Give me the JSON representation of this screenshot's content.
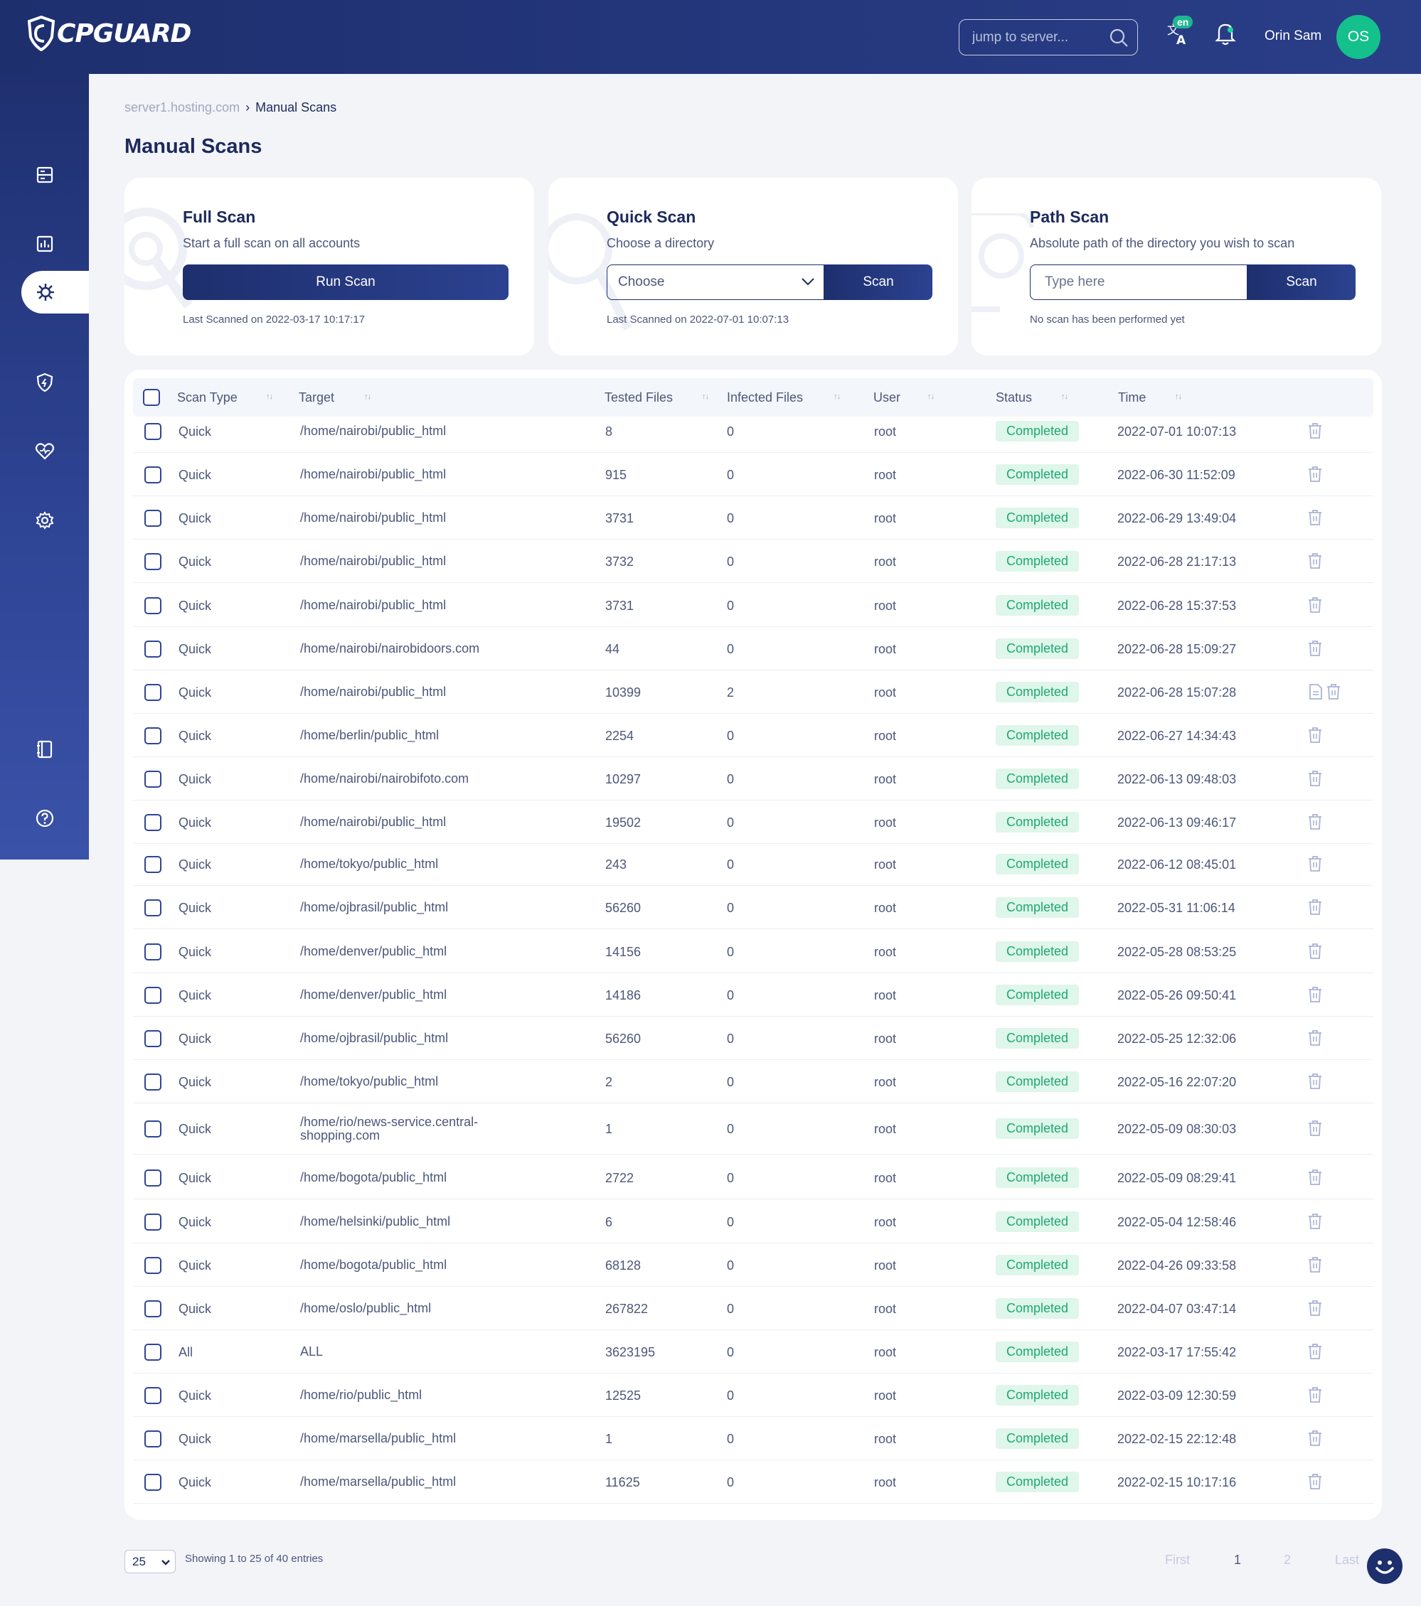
{
  "app": {
    "logo_text": "CPGUARD"
  },
  "header": {
    "search_placeholder": "jump to server...",
    "lang_badge": "en",
    "user_name": "Orin Sam",
    "avatar_initials": "OS"
  },
  "breadcrumb": {
    "server": "server1.hosting.com",
    "sep": "›",
    "current": "Manual Scans"
  },
  "page_title": "Manual Scans",
  "full_scan": {
    "title": "Full Scan",
    "subtitle": "Start a full scan on all accounts",
    "button": "Run Scan",
    "last": "Last Scanned on 2022-03-17 10:17:17"
  },
  "quick_scan": {
    "title": "Quick Scan",
    "subtitle": "Choose a directory",
    "select_value": "Choose",
    "button": "Scan",
    "last": "Last Scanned on 2022-07-01 10:07:13"
  },
  "path_scan": {
    "title": "Path Scan",
    "subtitle": "Absolute path of the directory you wish to scan",
    "placeholder": "Type here",
    "button": "Scan",
    "last": "No scan has been performed yet"
  },
  "table": {
    "columns": [
      "Scan Type",
      "Target",
      "Tested Files",
      "Infected Files",
      "User",
      "Status",
      "Time"
    ],
    "rows": [
      {
        "type": "Quick",
        "target": "/home/nairobi/public_html",
        "tested": "8",
        "infected": "0",
        "user": "root",
        "status": "Completed",
        "time": "2022-07-01 10:07:13",
        "report": false
      },
      {
        "type": "Quick",
        "target": "/home/nairobi/public_html",
        "tested": "915",
        "infected": "0",
        "user": "root",
        "status": "Completed",
        "time": "2022-06-30 11:52:09",
        "report": false
      },
      {
        "type": "Quick",
        "target": "/home/nairobi/public_html",
        "tested": "3731",
        "infected": "0",
        "user": "root",
        "status": "Completed",
        "time": "2022-06-29 13:49:04",
        "report": false
      },
      {
        "type": "Quick",
        "target": "/home/nairobi/public_html",
        "tested": "3732",
        "infected": "0",
        "user": "root",
        "status": "Completed",
        "time": "2022-06-28 21:17:13",
        "report": false
      },
      {
        "type": "Quick",
        "target": "/home/nairobi/public_html",
        "tested": "3731",
        "infected": "0",
        "user": "root",
        "status": "Completed",
        "time": "2022-06-28 15:37:53",
        "report": false
      },
      {
        "type": "Quick",
        "target": "/home/nairobi/nairobidoors.com",
        "tested": "44",
        "infected": "0",
        "user": "root",
        "status": "Completed",
        "time": "2022-06-28 15:09:27",
        "report": false
      },
      {
        "type": "Quick",
        "target": "/home/nairobi/public_html",
        "tested": "10399",
        "infected": "2",
        "user": "root",
        "status": "Completed",
        "time": "2022-06-28 15:07:28",
        "report": true
      },
      {
        "type": "Quick",
        "target": "/home/berlin/public_html",
        "tested": "2254",
        "infected": "0",
        "user": "root",
        "status": "Completed",
        "time": "2022-06-27 14:34:43",
        "report": false
      },
      {
        "type": "Quick",
        "target": "/home/nairobi/nairobifoto.com",
        "tested": "10297",
        "infected": "0",
        "user": "root",
        "status": "Completed",
        "time": "2022-06-13 09:48:03",
        "report": false
      },
      {
        "type": "Quick",
        "target": "/home/nairobi/public_html",
        "tested": "19502",
        "infected": "0",
        "user": "root",
        "status": "Completed",
        "time": "2022-06-13 09:46:17",
        "report": false
      },
      {
        "type": "Quick",
        "target": "/home/tokyo/public_html",
        "tested": "243",
        "infected": "0",
        "user": "root",
        "status": "Completed",
        "time": "2022-06-12 08:45:01",
        "report": false
      },
      {
        "type": "Quick",
        "target": "/home/ojbrasil/public_html",
        "tested": "56260",
        "infected": "0",
        "user": "root",
        "status": "Completed",
        "time": "2022-05-31 11:06:14",
        "report": false
      },
      {
        "type": "Quick",
        "target": "/home/denver/public_html",
        "tested": "14156",
        "infected": "0",
        "user": "root",
        "status": "Completed",
        "time": "2022-05-28 08:53:25",
        "report": false
      },
      {
        "type": "Quick",
        "target": "/home/denver/public_html",
        "tested": "14186",
        "infected": "0",
        "user": "root",
        "status": "Completed",
        "time": "2022-05-26 09:50:41",
        "report": false
      },
      {
        "type": "Quick",
        "target": "/home/ojbrasil/public_html",
        "tested": "56260",
        "infected": "0",
        "user": "root",
        "status": "Completed",
        "time": "2022-05-25 12:32:06",
        "report": false
      },
      {
        "type": "Quick",
        "target": "/home/tokyo/public_html",
        "tested": "2",
        "infected": "0",
        "user": "root",
        "status": "Completed",
        "time": "2022-05-16 22:07:20",
        "report": false
      },
      {
        "type": "Quick",
        "target": "/home/rio/news-service.central-shopping.com",
        "tested": "1",
        "infected": "0",
        "user": "root",
        "status": "Completed",
        "time": "2022-05-09 08:30:03",
        "report": false
      },
      {
        "type": "Quick",
        "target": "/home/bogota/public_html",
        "tested": "2722",
        "infected": "0",
        "user": "root",
        "status": "Completed",
        "time": "2022-05-09 08:29:41",
        "report": false
      },
      {
        "type": "Quick",
        "target": "/home/helsinki/public_html",
        "tested": "6",
        "infected": "0",
        "user": "root",
        "status": "Completed",
        "time": "2022-05-04 12:58:46",
        "report": false
      },
      {
        "type": "Quick",
        "target": "/home/bogota/public_html",
        "tested": "68128",
        "infected": "0",
        "user": "root",
        "status": "Completed",
        "time": "2022-04-26 09:33:58",
        "report": false
      },
      {
        "type": "Quick",
        "target": "/home/oslo/public_html",
        "tested": "267822",
        "infected": "0",
        "user": "root",
        "status": "Completed",
        "time": "2022-04-07 03:47:14",
        "report": false
      },
      {
        "type": "All",
        "target": "ALL",
        "tested": "3623195",
        "infected": "0",
        "user": "root",
        "status": "Completed",
        "time": "2022-03-17 17:55:42",
        "report": false
      },
      {
        "type": "Quick",
        "target": "/home/rio/public_html",
        "tested": "12525",
        "infected": "0",
        "user": "root",
        "status": "Completed",
        "time": "2022-03-09 12:30:59",
        "report": false
      },
      {
        "type": "Quick",
        "target": "/home/marsella/public_html",
        "tested": "1",
        "infected": "0",
        "user": "root",
        "status": "Completed",
        "time": "2022-02-15 22:12:48",
        "report": false
      },
      {
        "type": "Quick",
        "target": "/home/marsella/public_html",
        "tested": "11625",
        "infected": "0",
        "user": "root",
        "status": "Completed",
        "time": "2022-02-15 10:17:16",
        "report": false
      }
    ]
  },
  "footer": {
    "page_size": "25",
    "entries_text": "Showing 1 to 25 of 40 entries",
    "pagination": [
      "First",
      "1",
      "2",
      "Last"
    ]
  },
  "colors": {
    "primary": "#1e2f6e",
    "accent": "#14c08c",
    "status_bg": "#dff6ea",
    "status_text": "#1ea873"
  }
}
